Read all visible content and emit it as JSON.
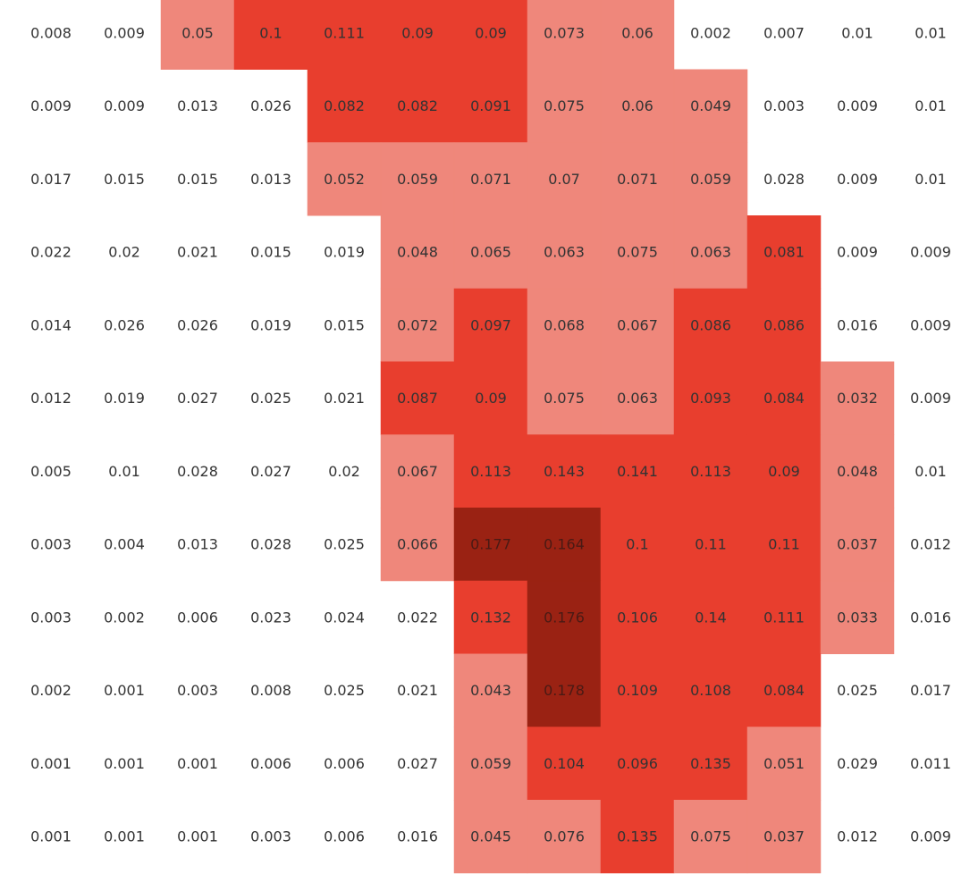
{
  "chart_data": {
    "type": "heatmap",
    "title": "",
    "xlabel": "",
    "ylabel": "",
    "grid": false,
    "legend": "none",
    "colors": {
      "background": "#ffffff",
      "light": "#ef877b",
      "medium": "#e83e2e",
      "dark": "#9a2213",
      "label_light_bg": "#333333",
      "label_dark_bg": "#4a1a14"
    },
    "bins": {
      "light_min": 0.03,
      "medium_min": 0.08,
      "dark_min": 0.15
    },
    "rows": [
      [
        0.008,
        0.009,
        0.05,
        0.1,
        0.111,
        0.09,
        0.09,
        0.073,
        0.06,
        0.002,
        0.007,
        0.01,
        0.01
      ],
      [
        0.009,
        0.009,
        0.013,
        0.026,
        0.082,
        0.082,
        0.091,
        0.075,
        0.06,
        0.049,
        0.003,
        0.009,
        0.01
      ],
      [
        0.017,
        0.015,
        0.015,
        0.013,
        0.052,
        0.059,
        0.071,
        0.07,
        0.071,
        0.059,
        0.028,
        0.009,
        0.01
      ],
      [
        0.022,
        0.02,
        0.021,
        0.015,
        0.019,
        0.048,
        0.065,
        0.063,
        0.075,
        0.063,
        0.081,
        0.009,
        0.009
      ],
      [
        0.014,
        0.026,
        0.026,
        0.019,
        0.015,
        0.072,
        0.097,
        0.068,
        0.067,
        0.086,
        0.086,
        0.016,
        0.009
      ],
      [
        0.012,
        0.019,
        0.027,
        0.025,
        0.021,
        0.087,
        0.09,
        0.075,
        0.063,
        0.093,
        0.084,
        0.032,
        0.009
      ],
      [
        0.005,
        0.01,
        0.028,
        0.027,
        0.02,
        0.067,
        0.113,
        0.143,
        0.141,
        0.113,
        0.09,
        0.048,
        0.01
      ],
      [
        0.003,
        0.004,
        0.013,
        0.028,
        0.025,
        0.066,
        0.177,
        0.164,
        0.1,
        0.11,
        0.11,
        0.037,
        0.012
      ],
      [
        0.003,
        0.002,
        0.006,
        0.023,
        0.024,
        0.022,
        0.132,
        0.176,
        0.106,
        0.14,
        0.111,
        0.033,
        0.016
      ],
      [
        0.002,
        0.001,
        0.003,
        0.008,
        0.025,
        0.021,
        0.043,
        0.178,
        0.109,
        0.108,
        0.084,
        0.025,
        0.017
      ],
      [
        0.001,
        0.001,
        0.001,
        0.006,
        0.006,
        0.027,
        0.059,
        0.104,
        0.096,
        0.135,
        0.051,
        0.029,
        0.011
      ],
      [
        0.001,
        0.001,
        0.001,
        0.003,
        0.006,
        0.016,
        0.045,
        0.076,
        0.135,
        0.075,
        0.037,
        0.012,
        0.009
      ]
    ]
  }
}
